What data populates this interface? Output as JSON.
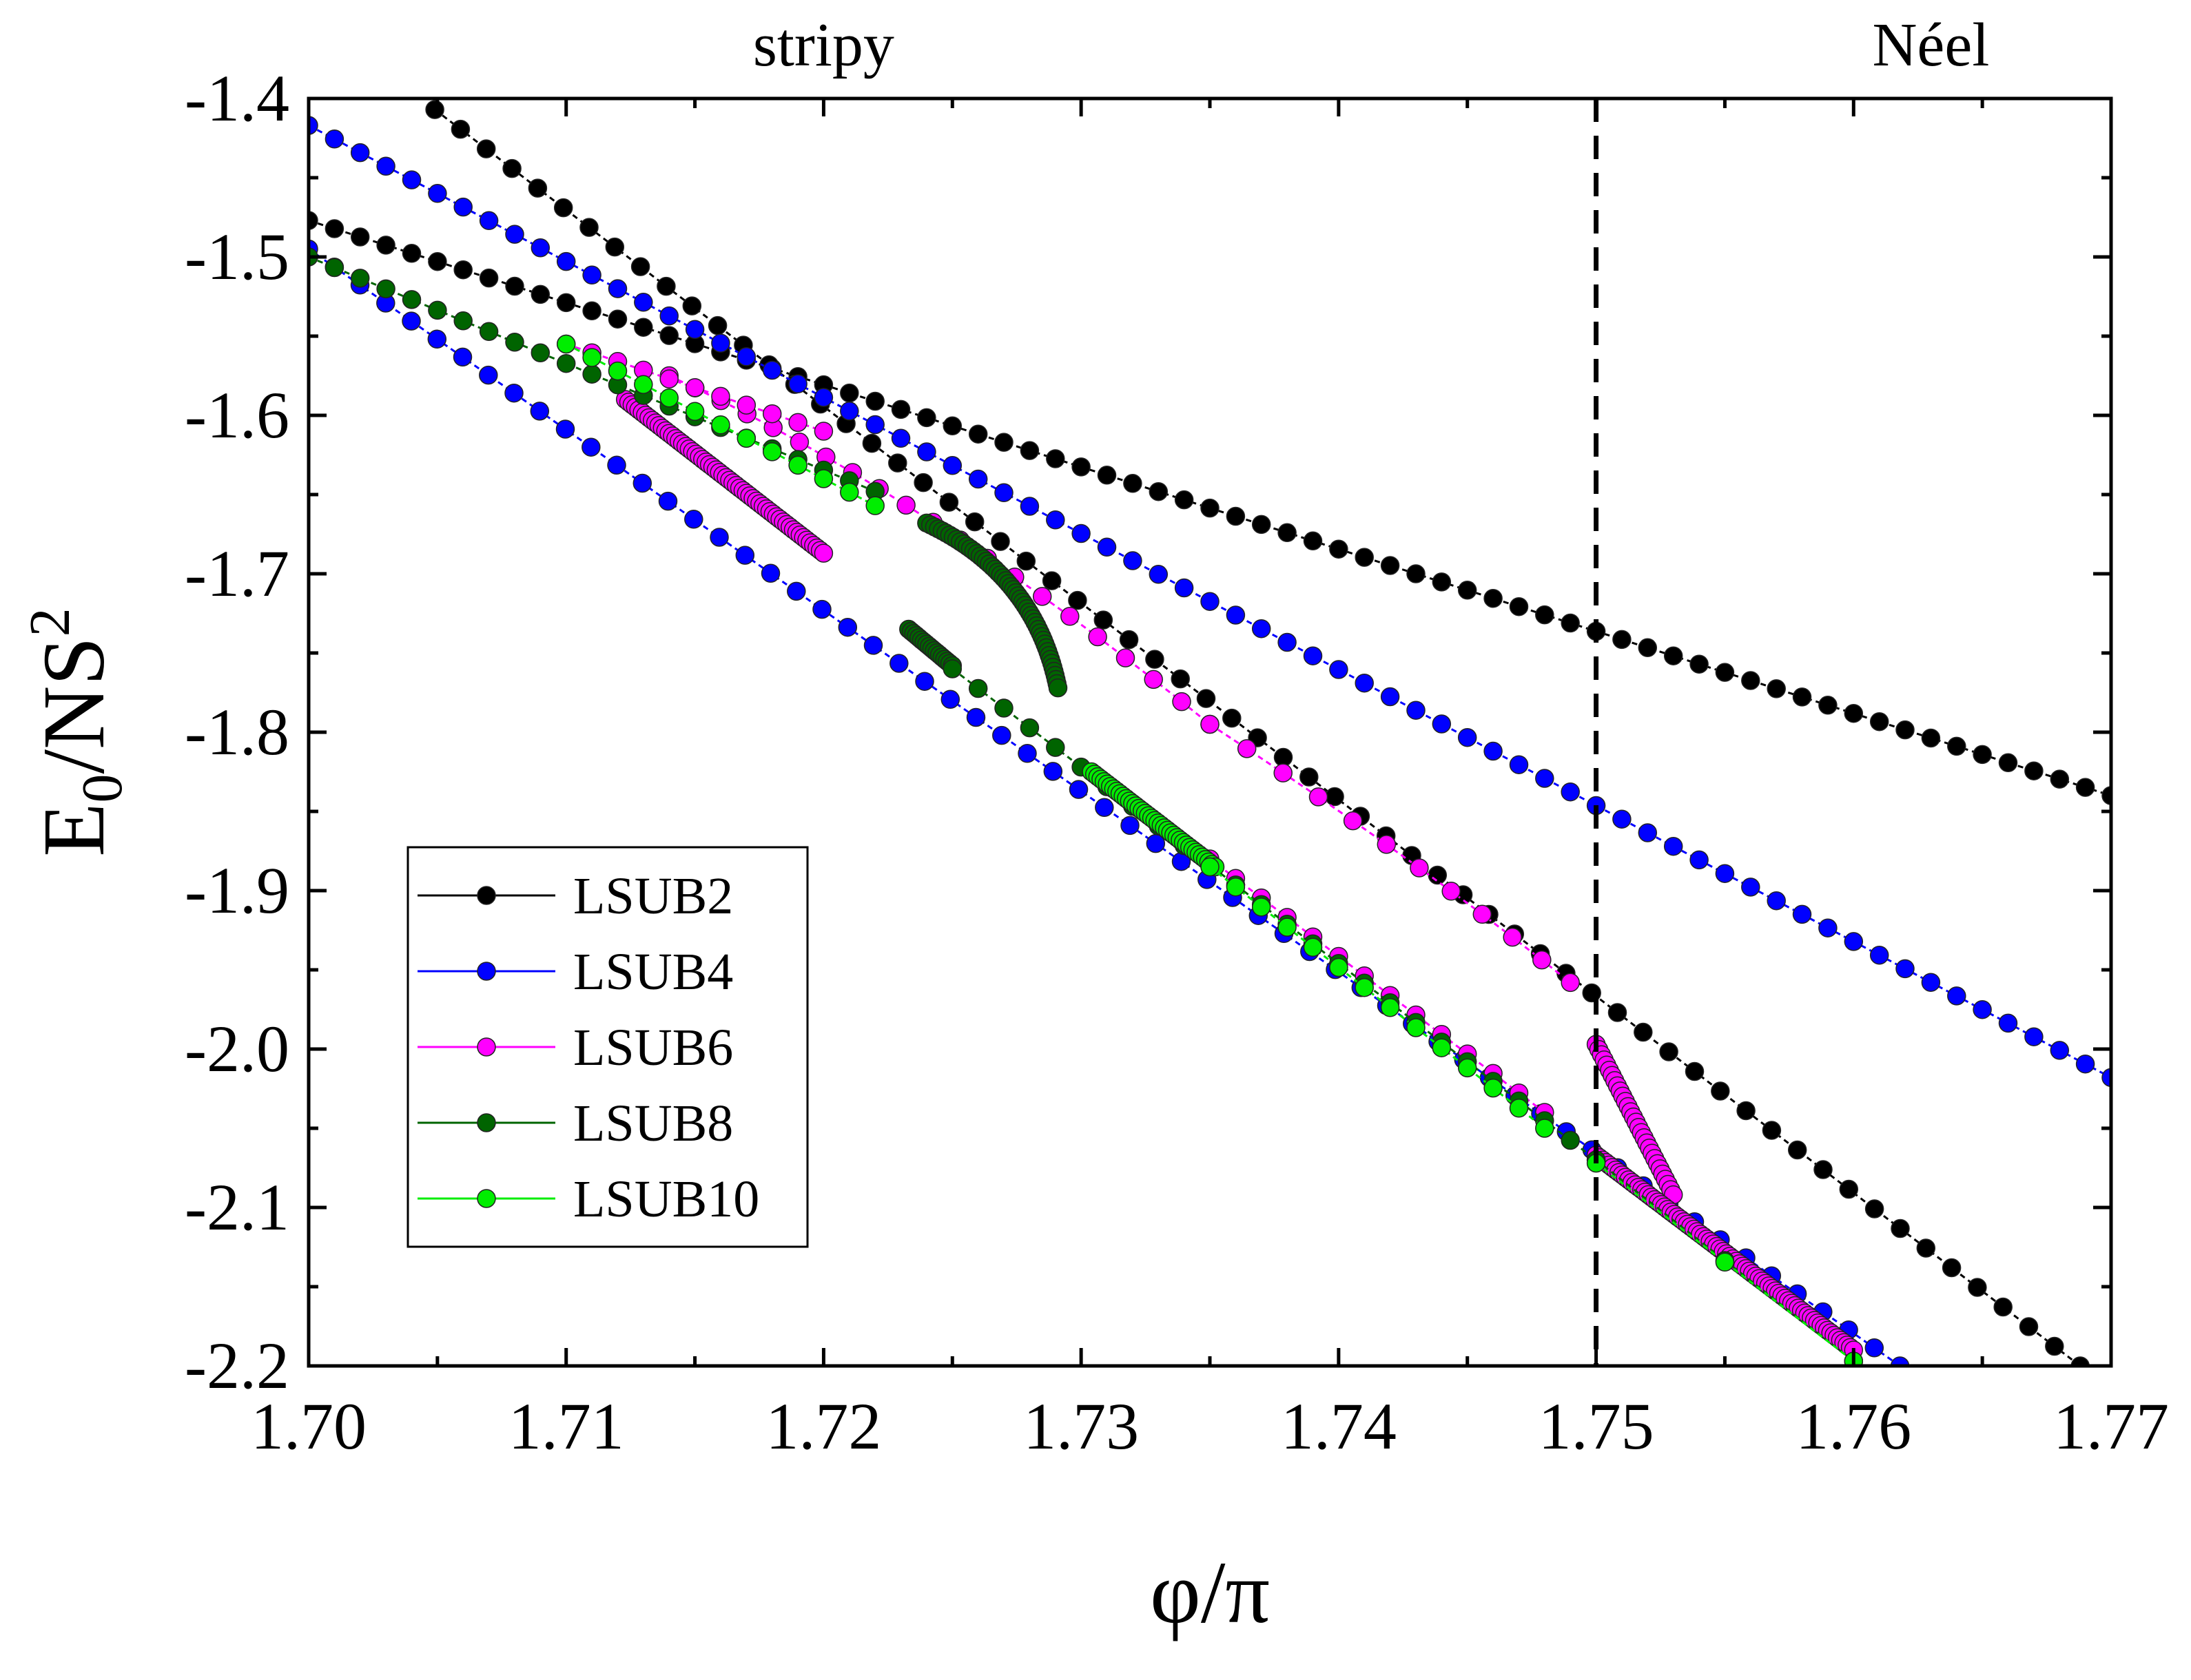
{
  "chart_data": {
    "type": "line",
    "title": "",
    "xlabel": "φ/π",
    "ylabel": {
      "main": "E",
      "sub": "0",
      "rest": "/NS",
      "sup": "2"
    },
    "xlim": [
      1.7,
      1.77
    ],
    "ylim": [
      -2.2,
      -1.4
    ],
    "xticks": [
      1.7,
      1.71,
      1.72,
      1.73,
      1.74,
      1.75,
      1.76,
      1.77
    ],
    "xtick_labels": [
      "1.70",
      "1.71",
      "1.72",
      "1.73",
      "1.74",
      "1.75",
      "1.76",
      "1.77"
    ],
    "yticks": [
      -1.4,
      -1.5,
      -1.6,
      -1.7,
      -1.8,
      -1.9,
      -2.0,
      -2.1,
      -2.2
    ],
    "ytick_labels": [
      "-1.4",
      "-1.5",
      "-1.6",
      "-1.7",
      "-1.8",
      "-1.9",
      "-2.0",
      "-2.1",
      "-2.2"
    ],
    "vline_x": 1.75,
    "regions": [
      {
        "label": "stripy",
        "x": 1.72
      },
      {
        "label": "Néel",
        "x": 1.763
      }
    ],
    "legend_position": "bottom-left",
    "series": [
      {
        "name": "LSUB2",
        "color": "#000000",
        "segments": [
          {
            "type": "linear",
            "x0": 1.7,
            "y0": -1.477,
            "x1": 1.77,
            "y1": -1.84,
            "n": 71
          },
          {
            "type": "linear",
            "x0": 1.7049,
            "y0": -1.407,
            "x1": 1.7688,
            "y1": -2.2,
            "n": 65
          }
        ]
      },
      {
        "name": "LSUB4",
        "color": "#0000ff",
        "segments": [
          {
            "type": "linear",
            "x0": 1.7,
            "y0": -1.417,
            "x1": 1.77,
            "y1": -2.018,
            "n": 71
          },
          {
            "type": "linear",
            "x0": 1.7,
            "y0": -1.495,
            "x1": 1.7618,
            "y1": -2.2,
            "n": 63
          }
        ]
      },
      {
        "name": "LSUB6",
        "color": "#ff00ff",
        "segments": [
          {
            "type": "linear",
            "x0": 1.7123,
            "y0": -1.59,
            "x1": 1.72,
            "y1": -1.687,
            "n": 60
          },
          {
            "type": "bezier",
            "x0": 1.714,
            "y0": -1.575,
            "cx": 1.724,
            "cy": -1.65,
            "x1": 1.735,
            "y1": -1.795,
            "n": 21
          },
          {
            "type": "bezier",
            "x0": 1.735,
            "y0": -1.795,
            "cx": 1.743,
            "cy": -1.88,
            "x1": 1.749,
            "y1": -1.958,
            "n": 12
          },
          {
            "type": "linear",
            "x0": 1.75,
            "y0": -1.997,
            "x1": 1.753,
            "y1": -2.092,
            "n": 30
          },
          {
            "type": "linear",
            "x0": 1.75,
            "y0": -2.067,
            "x1": 1.76,
            "y1": -2.19,
            "n": 80
          },
          {
            "type": "linear",
            "x0": 1.71,
            "y0": -1.555,
            "x1": 1.72,
            "y1": -1.61,
            "n": 11
          },
          {
            "type": "linear",
            "x0": 1.735,
            "y0": -1.88,
            "x1": 1.748,
            "y1": -2.04,
            "n": 14
          }
        ]
      },
      {
        "name": "LSUB8",
        "color": "#006400",
        "segments": [
          {
            "type": "linear",
            "x0": 1.7,
            "y0": -1.5,
            "x1": 1.722,
            "y1": -1.648,
            "n": 23
          },
          {
            "type": "bezier",
            "x0": 1.724,
            "y0": -1.668,
            "cx": 1.7282,
            "cy": -1.7,
            "x1": 1.7291,
            "y1": -1.772,
            "n": 55
          },
          {
            "type": "linear",
            "x0": 1.7233,
            "y0": -1.735,
            "x1": 1.725,
            "y1": -1.758,
            "n": 18
          },
          {
            "type": "linear",
            "x0": 1.725,
            "y0": -1.76,
            "x1": 1.75,
            "y1": -2.07,
            "n": 26
          },
          {
            "type": "linear",
            "x0": 1.75,
            "y0": -2.07,
            "x1": 1.76,
            "y1": -2.197,
            "n": 3
          }
        ]
      },
      {
        "name": "LSUB10",
        "color": "#00ee00",
        "segments": [
          {
            "type": "linear",
            "x0": 1.71,
            "y0": -1.555,
            "x1": 1.722,
            "y1": -1.657,
            "n": 13
          },
          {
            "type": "linear",
            "x0": 1.7304,
            "y0": -1.825,
            "x1": 1.7352,
            "y1": -1.885,
            "n": 40
          },
          {
            "type": "linear",
            "x0": 1.735,
            "y0": -1.885,
            "x1": 1.748,
            "y1": -2.05,
            "n": 14
          },
          {
            "type": "linear",
            "x0": 1.75,
            "y0": -2.072,
            "x1": 1.76,
            "y1": -2.197,
            "n": 3
          }
        ]
      }
    ]
  }
}
